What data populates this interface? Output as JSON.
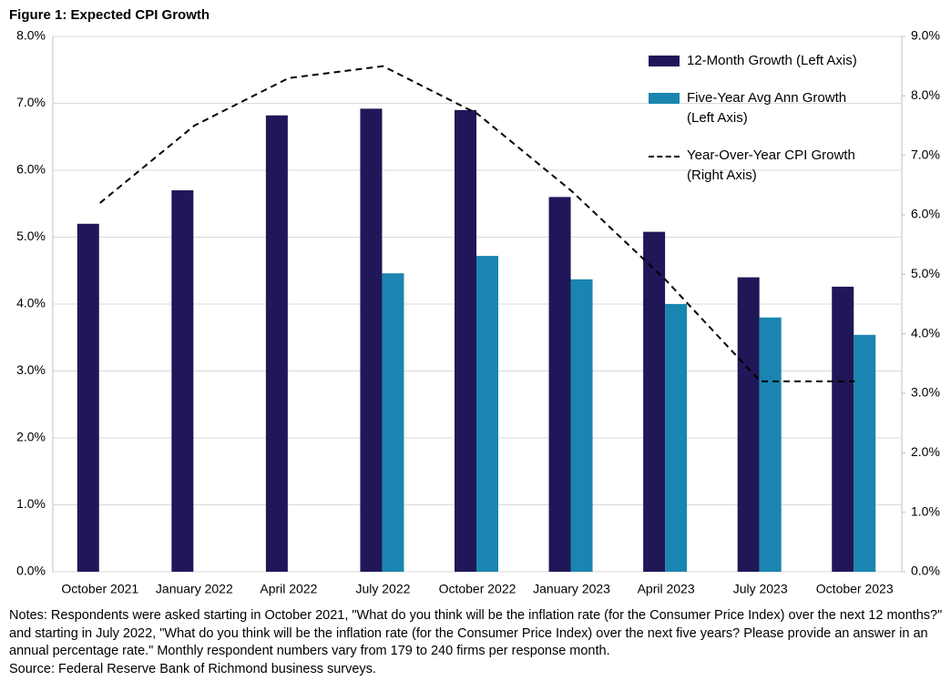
{
  "chart_data": {
    "type": "bar",
    "title": "Figure 1: Expected CPI Growth",
    "categories": [
      "October 2021",
      "January 2022",
      "April 2022",
      "July 2022",
      "October 2022",
      "January 2023",
      "April 2023",
      "July 2023",
      "October 2023"
    ],
    "series": [
      {
        "name": "12-Month Growth (Left Axis)",
        "color": "#201758",
        "type": "bar",
        "values": [
          5.2,
          5.7,
          6.82,
          6.92,
          6.9,
          5.6,
          5.08,
          4.4,
          4.26
        ]
      },
      {
        "name": "Five-Year Avg Ann Growth (Left Axis)",
        "color": "#1a85b0",
        "type": "bar",
        "values": [
          null,
          null,
          null,
          4.46,
          4.72,
          4.37,
          4.0,
          3.8,
          3.54
        ]
      },
      {
        "name": "Year-Over-Year CPI Growth (Right Axis)",
        "color": "#000000",
        "type": "line",
        "axis": "y2",
        "values": [
          6.2,
          7.5,
          8.3,
          8.5,
          7.7,
          6.4,
          4.9,
          3.2,
          3.2
        ]
      }
    ],
    "ylim": [
      0,
      8
    ],
    "yticks": [
      {
        "value": 0,
        "label": "0.0%"
      },
      {
        "value": 1,
        "label": "1.0%"
      },
      {
        "value": 2,
        "label": "2.0%"
      },
      {
        "value": 3,
        "label": "3.0%"
      },
      {
        "value": 4,
        "label": "4.0%"
      },
      {
        "value": 5,
        "label": "5.0%"
      },
      {
        "value": 6,
        "label": "6.0%"
      },
      {
        "value": 7,
        "label": "7.0%"
      },
      {
        "value": 8,
        "label": "8.0%"
      }
    ],
    "y2lim": [
      0,
      9
    ],
    "y2ticks": [
      {
        "value": 0,
        "label": "0.0%"
      },
      {
        "value": 1,
        "label": "1.0%"
      },
      {
        "value": 2,
        "label": "2.0%"
      },
      {
        "value": 3,
        "label": "3.0%"
      },
      {
        "value": 4,
        "label": "4.0%"
      },
      {
        "value": 5,
        "label": "5.0%"
      },
      {
        "value": 6,
        "label": "6.0%"
      },
      {
        "value": 7,
        "label": "7.0%"
      },
      {
        "value": 8,
        "label": "8.0%"
      },
      {
        "value": 9,
        "label": "9.0%"
      }
    ],
    "grid": true,
    "legend": "upper right",
    "notes": "Notes: Respondents were asked starting in October 2021,  \"What do you think will be the inflation rate (for the Consumer Price Index) over the next 12 months?\" and starting in July 2022, \"What do you think will be the inflation rate (for the Consumer Price Index) over the next five years? Please provide an answer in an annual percentage rate.\" Monthly respondent numbers vary from 179 to 240  firms per response month.",
    "source": "Source: Federal Reserve Bank of Richmond business surveys."
  }
}
